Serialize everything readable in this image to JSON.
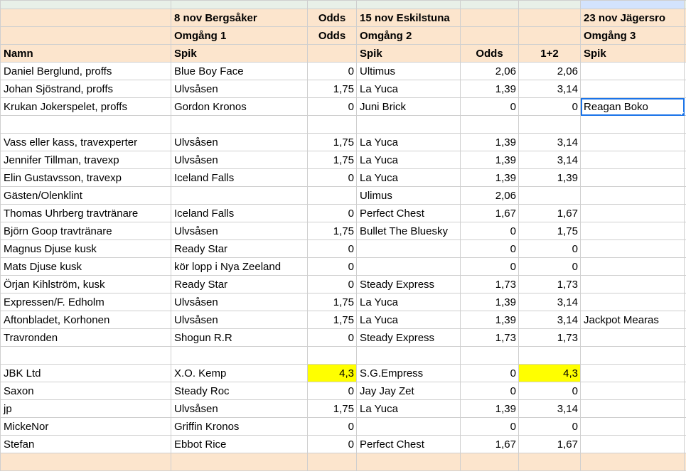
{
  "sheet": {
    "header_rows": [
      [
        null,
        "8 nov Bergsåker",
        "Odds",
        "15 nov Eskilstuna",
        null,
        null,
        "23 nov Jägersro"
      ],
      [
        null,
        "Omgång 1",
        "Odds",
        "Omgång 2",
        null,
        null,
        "Omgång 3"
      ],
      [
        "Namn",
        "Spik",
        null,
        "Spik",
        "Odds",
        "1+2",
        "Spik"
      ]
    ],
    "rows": [
      [
        "Daniel Berglund, proffs",
        "Blue Boy Face",
        "0",
        "Ultimus",
        "2,06",
        "2,06",
        null
      ],
      [
        "Johan Sjöstrand, proffs",
        "Ulvsåsen",
        "1,75",
        "La Yuca",
        "1,39",
        "3,14",
        null
      ],
      [
        "Krukan Jokerspelet, proffs",
        "Gordon Kronos",
        "0",
        "Juni Brick",
        "0",
        "0",
        "Reagan Boko"
      ],
      [
        null,
        null,
        null,
        null,
        null,
        null,
        null
      ],
      [
        "Vass eller kass, travexperter",
        "Ulvsåsen",
        "1,75",
        "La Yuca",
        "1,39",
        "3,14",
        null
      ],
      [
        "Jennifer Tillman, travexp",
        "Ulvsåsen",
        "1,75",
        "La Yuca",
        "1,39",
        "3,14",
        null
      ],
      [
        "Elin Gustavsson, travexp",
        "Iceland Falls",
        "0",
        "La Yuca",
        "1,39",
        "1,39",
        null
      ],
      [
        "Gästen/Olenklint",
        null,
        null,
        "Ulimus",
        "2,06",
        null,
        null
      ],
      [
        "Thomas Uhrberg travtränare",
        "Iceland Falls",
        "0",
        "Perfect Chest",
        "1,67",
        "1,67",
        null
      ],
      [
        "Björn Goop travtränare",
        "Ulvsåsen",
        "1,75",
        "Bullet The Bluesky",
        "0",
        "1,75",
        null
      ],
      [
        "Magnus Djuse kusk",
        "Ready Star",
        "0",
        null,
        "0",
        "0",
        null
      ],
      [
        "Mats Djuse kusk",
        "kör lopp i Nya Zeeland",
        "0",
        null,
        "0",
        "0",
        null
      ],
      [
        "Örjan Kihlström, kusk",
        "Ready Star",
        "0",
        "Steady Express",
        "1,73",
        "1,73",
        null
      ],
      [
        "Expressen/F. Edholm",
        "Ulvsåsen",
        "1,75",
        "La Yuca",
        "1,39",
        "3,14",
        null
      ],
      [
        "Aftonbladet, Korhonen",
        "Ulvsåsen",
        "1,75",
        "La Yuca",
        "1,39",
        "3,14",
        "Jackpot Mearas"
      ],
      [
        "Travronden",
        "Shogun R.R",
        "0",
        "Steady Express",
        "1,73",
        "1,73",
        null
      ],
      [
        null,
        null,
        null,
        null,
        null,
        null,
        null
      ],
      [
        "JBK Ltd",
        "X.O. Kemp",
        "4,3",
        "S.G.Empress",
        "0",
        "4,3",
        null
      ],
      [
        "Saxon",
        "Steady Roc",
        "0",
        "Jay Jay Zet",
        "0",
        "0",
        null
      ],
      [
        "jp",
        "Ulvsåsen",
        "1,75",
        "La Yuca",
        "1,39",
        "3,14",
        null
      ],
      [
        "MickeNor",
        "Griffin Kronos",
        "0",
        null,
        "0",
        "0",
        null
      ],
      [
        "Stefan",
        "Ebbot Rice",
        "0",
        "Perfect Chest",
        "1,67",
        "1,67",
        null
      ]
    ]
  }
}
